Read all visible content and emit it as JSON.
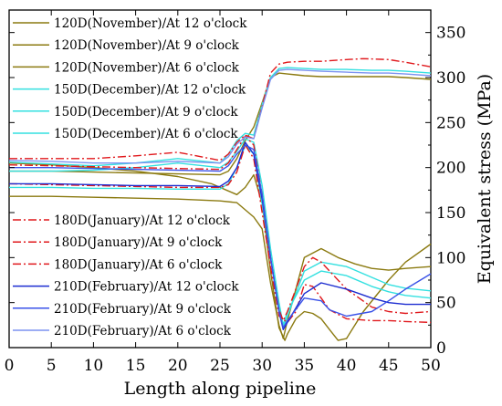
{
  "chart_data": {
    "type": "line",
    "title": "",
    "xlabel": "Length along pipeline",
    "ylabel": "Equivalent stress (MPa)",
    "xlim": [
      0,
      50
    ],
    "ylim": [
      0,
      375
    ],
    "x_ticks": [
      0,
      5,
      10,
      15,
      20,
      25,
      30,
      35,
      40,
      45,
      50
    ],
    "y_ticks": [
      0,
      50,
      100,
      150,
      200,
      250,
      300,
      350
    ],
    "y_axis_side": "right",
    "grid": false,
    "legend_placement": "top-left and middle-left inside",
    "colors": {
      "olive": "#8b7a10",
      "cyan": "#33e0e0",
      "red": "#e0181c",
      "blue1": "#1c2cd0",
      "blue2": "#3a52e8",
      "blue3": "#7b92f0"
    },
    "series": [
      {
        "name": "120D(November)/At 12 o'clock",
        "color": "#8b7a10",
        "dash": "solid",
        "x": [
          0,
          5,
          10,
          15,
          20,
          25,
          27,
          29,
          30,
          31,
          32,
          32.5,
          33,
          35,
          37,
          39,
          41,
          43,
          45,
          47,
          50
        ],
        "y": [
          168,
          168,
          167,
          166,
          165,
          163,
          161,
          145,
          132,
          72,
          25,
          10,
          30,
          100,
          110,
          100,
          93,
          88,
          86,
          88,
          90
        ]
      },
      {
        "name": "120D(November)/At 9 o'clock",
        "color": "#8b7a10",
        "dash": "solid",
        "x": [
          0,
          5,
          10,
          15,
          20,
          25,
          26,
          27,
          28,
          29,
          30,
          31,
          32,
          33,
          34,
          35,
          37,
          40,
          43,
          45,
          47,
          50
        ],
        "y": [
          196,
          196,
          195,
          194,
          193,
          192,
          196,
          210,
          230,
          245,
          272,
          300,
          305,
          304,
          303,
          302,
          301,
          301,
          301,
          301,
          300,
          298
        ]
      },
      {
        "name": "120D(November)/At 6 o'clock",
        "color": "#8b7a10",
        "dash": "solid",
        "x": [
          0,
          5,
          10,
          15,
          20,
          24,
          26,
          27,
          28,
          29,
          30,
          31,
          32,
          32.7,
          33,
          34,
          35,
          36,
          37,
          38,
          39,
          40,
          42,
          45,
          47,
          50
        ],
        "y": [
          205,
          203,
          200,
          196,
          190,
          182,
          174,
          170,
          178,
          192,
          160,
          85,
          22,
          8,
          15,
          32,
          40,
          38,
          32,
          20,
          8,
          10,
          40,
          75,
          95,
          115
        ]
      },
      {
        "name": "150D(December)/At 12 o'clock",
        "color": "#33e0e0",
        "dash": "solid",
        "x": [
          0,
          5,
          10,
          15,
          20,
          25,
          26,
          27,
          28,
          29,
          30,
          31,
          32,
          32.5,
          33,
          35,
          37,
          40,
          43,
          45,
          47,
          50
        ],
        "y": [
          178,
          178,
          177,
          177,
          176,
          176,
          182,
          200,
          225,
          215,
          160,
          100,
          45,
          22,
          35,
          85,
          95,
          90,
          78,
          70,
          66,
          63
        ]
      },
      {
        "name": "150D(December)/At 9 o'clock",
        "color": "#33e0e0",
        "dash": "solid",
        "x": [
          0,
          5,
          10,
          15,
          20,
          25,
          26,
          27,
          28,
          29,
          30,
          31,
          32,
          33,
          35,
          37,
          40,
          43,
          45,
          47,
          50
        ],
        "y": [
          206,
          204,
          202,
          205,
          210,
          205,
          215,
          230,
          238,
          236,
          270,
          300,
          310,
          311,
          310,
          309,
          309,
          308,
          308,
          307,
          305
        ]
      },
      {
        "name": "150D(December)/At 6 o'clock",
        "color": "#33e0e0",
        "dash": "solid",
        "x": [
          0,
          5,
          10,
          15,
          20,
          25,
          26,
          27,
          28,
          29,
          30,
          31,
          32,
          32.5,
          33,
          35,
          37,
          40,
          43,
          45,
          47,
          50
        ],
        "y": [
          196,
          196,
          197,
          200,
          205,
          200,
          206,
          218,
          232,
          228,
          180,
          110,
          50,
          25,
          40,
          75,
          85,
          80,
          68,
          62,
          58,
          55
        ]
      },
      {
        "name": "180D(January)/At 12 o'clock",
        "color": "#e0181c",
        "dash": "dashdot",
        "x": [
          0,
          5,
          10,
          15,
          20,
          25,
          26,
          27,
          28,
          29,
          30,
          31,
          32,
          33,
          34,
          35,
          36,
          37,
          38,
          40,
          43,
          45,
          47,
          50
        ],
        "y": [
          182,
          181,
          180,
          179,
          178,
          178,
          181,
          195,
          225,
          210,
          150,
          90,
          35,
          28,
          40,
          70,
          68,
          55,
          42,
          32,
          30,
          30,
          29,
          28
        ]
      },
      {
        "name": "180D(January)/At 9 o'clock",
        "color": "#e0181c",
        "dash": "dashdot",
        "x": [
          0,
          5,
          10,
          15,
          20,
          25,
          26,
          27,
          28,
          29,
          30,
          31,
          32,
          33,
          35,
          37,
          40,
          42,
          45,
          47,
          50
        ],
        "y": [
          210,
          210,
          210,
          213,
          217,
          208,
          215,
          228,
          236,
          232,
          268,
          305,
          315,
          317,
          318,
          318,
          320,
          321,
          320,
          317,
          312
        ]
      },
      {
        "name": "180D(January)/At 6 o'clock",
        "color": "#e0181c",
        "dash": "dashdot",
        "x": [
          0,
          5,
          10,
          15,
          20,
          25,
          26,
          27,
          28,
          29,
          30,
          31,
          32,
          32.5,
          33,
          35,
          36,
          37,
          38,
          40,
          43,
          45,
          47,
          50
        ],
        "y": [
          203,
          202,
          201,
          200,
          199,
          198,
          205,
          220,
          235,
          225,
          170,
          100,
          42,
          30,
          40,
          90,
          100,
          95,
          85,
          65,
          45,
          40,
          38,
          40
        ]
      },
      {
        "name": "210D(February)/At 12 o'clock",
        "color": "#1c2cd0",
        "dash": "solid",
        "x": [
          0,
          5,
          10,
          15,
          20,
          25,
          26,
          27,
          28,
          29,
          30,
          31,
          32,
          32.5,
          33,
          35,
          37,
          40,
          43,
          45,
          47,
          50
        ],
        "y": [
          182,
          182,
          181,
          180,
          180,
          179,
          185,
          200,
          228,
          215,
          165,
          100,
          40,
          20,
          28,
          60,
          72,
          65,
          55,
          50,
          48,
          48
        ]
      },
      {
        "name": "210D(February)/At 9 o'clock",
        "color": "#3a52e8",
        "dash": "solid",
        "x": [
          0,
          5,
          10,
          15,
          20,
          25,
          26,
          27,
          28,
          29,
          30,
          31,
          32,
          32.5,
          33,
          35,
          37,
          38,
          40,
          43,
          45,
          47,
          50
        ],
        "y": [
          200,
          200,
          199,
          198,
          197,
          196,
          202,
          215,
          225,
          220,
          170,
          100,
          40,
          22,
          30,
          55,
          52,
          42,
          35,
          40,
          52,
          65,
          82
        ]
      },
      {
        "name": "210D(February)/At 6 o'clock",
        "color": "#7b92f0",
        "dash": "solid",
        "x": [
          0,
          5,
          10,
          15,
          20,
          25,
          26,
          27,
          28,
          29,
          30,
          31,
          32,
          33,
          35,
          37,
          40,
          43,
          45,
          47,
          50
        ],
        "y": [
          208,
          207,
          205,
          205,
          207,
          205,
          212,
          226,
          234,
          232,
          266,
          298,
          308,
          309,
          308,
          307,
          306,
          305,
          305,
          304,
          302
        ]
      }
    ]
  }
}
